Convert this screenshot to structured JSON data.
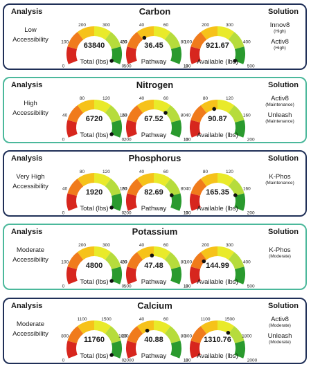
{
  "headers": {
    "analysis": "Analysis",
    "solution": "Solution"
  },
  "panels": [
    {
      "title": "Carbon",
      "accessibility": [
        "Low",
        "Accessibility"
      ],
      "solutions": [
        {
          "name": "Innov8",
          "level": "(High)"
        },
        {
          "name": "Activ8",
          "level": "(High)"
        }
      ],
      "gauges": [
        {
          "label": "Total (lbs)",
          "display": "63840",
          "ticks": [
            "0",
            "100",
            "200",
            "300",
            "400",
            "500"
          ],
          "min": 0,
          "max": 500,
          "needle": 500
        },
        {
          "label": "Pathway",
          "display": "36.45",
          "ticks": [
            "0",
            "20",
            "40",
            "60",
            "80",
            "100"
          ],
          "min": 0,
          "max": 100,
          "needle": 36.45
        },
        {
          "label": "Available (lbs)",
          "display": "921.67",
          "ticks": [
            "0",
            "100",
            "200",
            "300",
            "400",
            "500"
          ],
          "min": 0,
          "max": 500,
          "needle": 500
        }
      ]
    },
    {
      "title": "Nitrogen",
      "accessibility": [
        "High",
        "Accessibility"
      ],
      "solutions": [
        {
          "name": "Activ8",
          "level": "(Maintenance)"
        },
        {
          "name": "Unleash",
          "level": "(Maintenance)"
        }
      ],
      "gauges": [
        {
          "label": "Total (lbs)",
          "display": "6720",
          "ticks": [
            "0",
            "40",
            "80",
            "120",
            "160",
            "200"
          ],
          "min": 0,
          "max": 200,
          "needle": 200
        },
        {
          "label": "Pathway",
          "display": "67.52",
          "ticks": [
            "0",
            "20",
            "40",
            "60",
            "80",
            "100"
          ],
          "min": 0,
          "max": 100,
          "needle": 67.52
        },
        {
          "label": "Available (lbs)",
          "display": "90.87",
          "ticks": [
            "0",
            "40",
            "80",
            "120",
            "160",
            "200"
          ],
          "min": 0,
          "max": 200,
          "needle": 90.87
        }
      ]
    },
    {
      "title": "Phosphorus",
      "accessibility": [
        "Very High",
        "Accessibility"
      ],
      "solutions": [
        {
          "name": "K-Phos",
          "level": "(Maintenance)"
        }
      ],
      "gauges": [
        {
          "label": "Total (lbs)",
          "display": "1920",
          "ticks": [
            "0",
            "40",
            "80",
            "120",
            "160",
            "200"
          ],
          "min": 0,
          "max": 200,
          "needle": 200
        },
        {
          "label": "Pathway",
          "display": "82.69",
          "ticks": [
            "0",
            "20",
            "40",
            "60",
            "80",
            "100"
          ],
          "min": 0,
          "max": 100,
          "needle": 82.69
        },
        {
          "label": "Available (lbs)",
          "display": "165.35",
          "ticks": [
            "0",
            "40",
            "80",
            "120",
            "160",
            "200"
          ],
          "min": 0,
          "max": 200,
          "needle": 165.35
        }
      ]
    },
    {
      "title": "Potassium",
      "accessibility": [
        "Moderate",
        "Accessibility"
      ],
      "solutions": [
        {
          "name": "K-Phos",
          "level": "(Moderate)"
        }
      ],
      "gauges": [
        {
          "label": "Total (lbs)",
          "display": "4800",
          "ticks": [
            "0",
            "100",
            "200",
            "300",
            "400",
            "500"
          ],
          "min": 0,
          "max": 500,
          "needle": 500
        },
        {
          "label": "Pathway",
          "display": "47.48",
          "ticks": [
            "0",
            "20",
            "40",
            "60",
            "80",
            "100"
          ],
          "min": 0,
          "max": 100,
          "needle": 47.48
        },
        {
          "label": "Available (lbs)",
          "display": "144.99",
          "ticks": [
            "0",
            "100",
            "200",
            "300",
            "400",
            "500"
          ],
          "min": 0,
          "max": 500,
          "needle": 144.99
        }
      ]
    },
    {
      "title": "Calcium",
      "accessibility": [
        "Moderate",
        "Accessibility"
      ],
      "solutions": [
        {
          "name": "Activ8",
          "level": "(Moderate)"
        },
        {
          "name": "Unleash",
          "level": "(Moderate)"
        }
      ],
      "gauges": [
        {
          "label": "Total (lbs)",
          "display": "11760",
          "ticks": [
            "0",
            "800",
            "1100",
            "1500",
            "1800",
            "2000"
          ],
          "min": 0,
          "max": 2000,
          "needle": 2000
        },
        {
          "label": "Pathway",
          "display": "40.88",
          "ticks": [
            "0",
            "20",
            "40",
            "60",
            "80",
            "100"
          ],
          "min": 0,
          "max": 100,
          "needle": 40.88
        },
        {
          "label": "Available (lbs)",
          "display": "1310.76",
          "ticks": [
            "0",
            "800",
            "1100",
            "1500",
            "1800",
            "2000"
          ],
          "min": 0,
          "max": 2000,
          "needle": 1310.76
        }
      ]
    }
  ],
  "colors": {
    "panel_border_navy": "#1f2f57",
    "panel_border_teal": "#4bb89b",
    "scale": [
      "#d7261e",
      "#f07b1c",
      "#f6c21a",
      "#e9ea2a",
      "#b6dc3c",
      "#2a9a2e"
    ],
    "needle": "#111111"
  }
}
